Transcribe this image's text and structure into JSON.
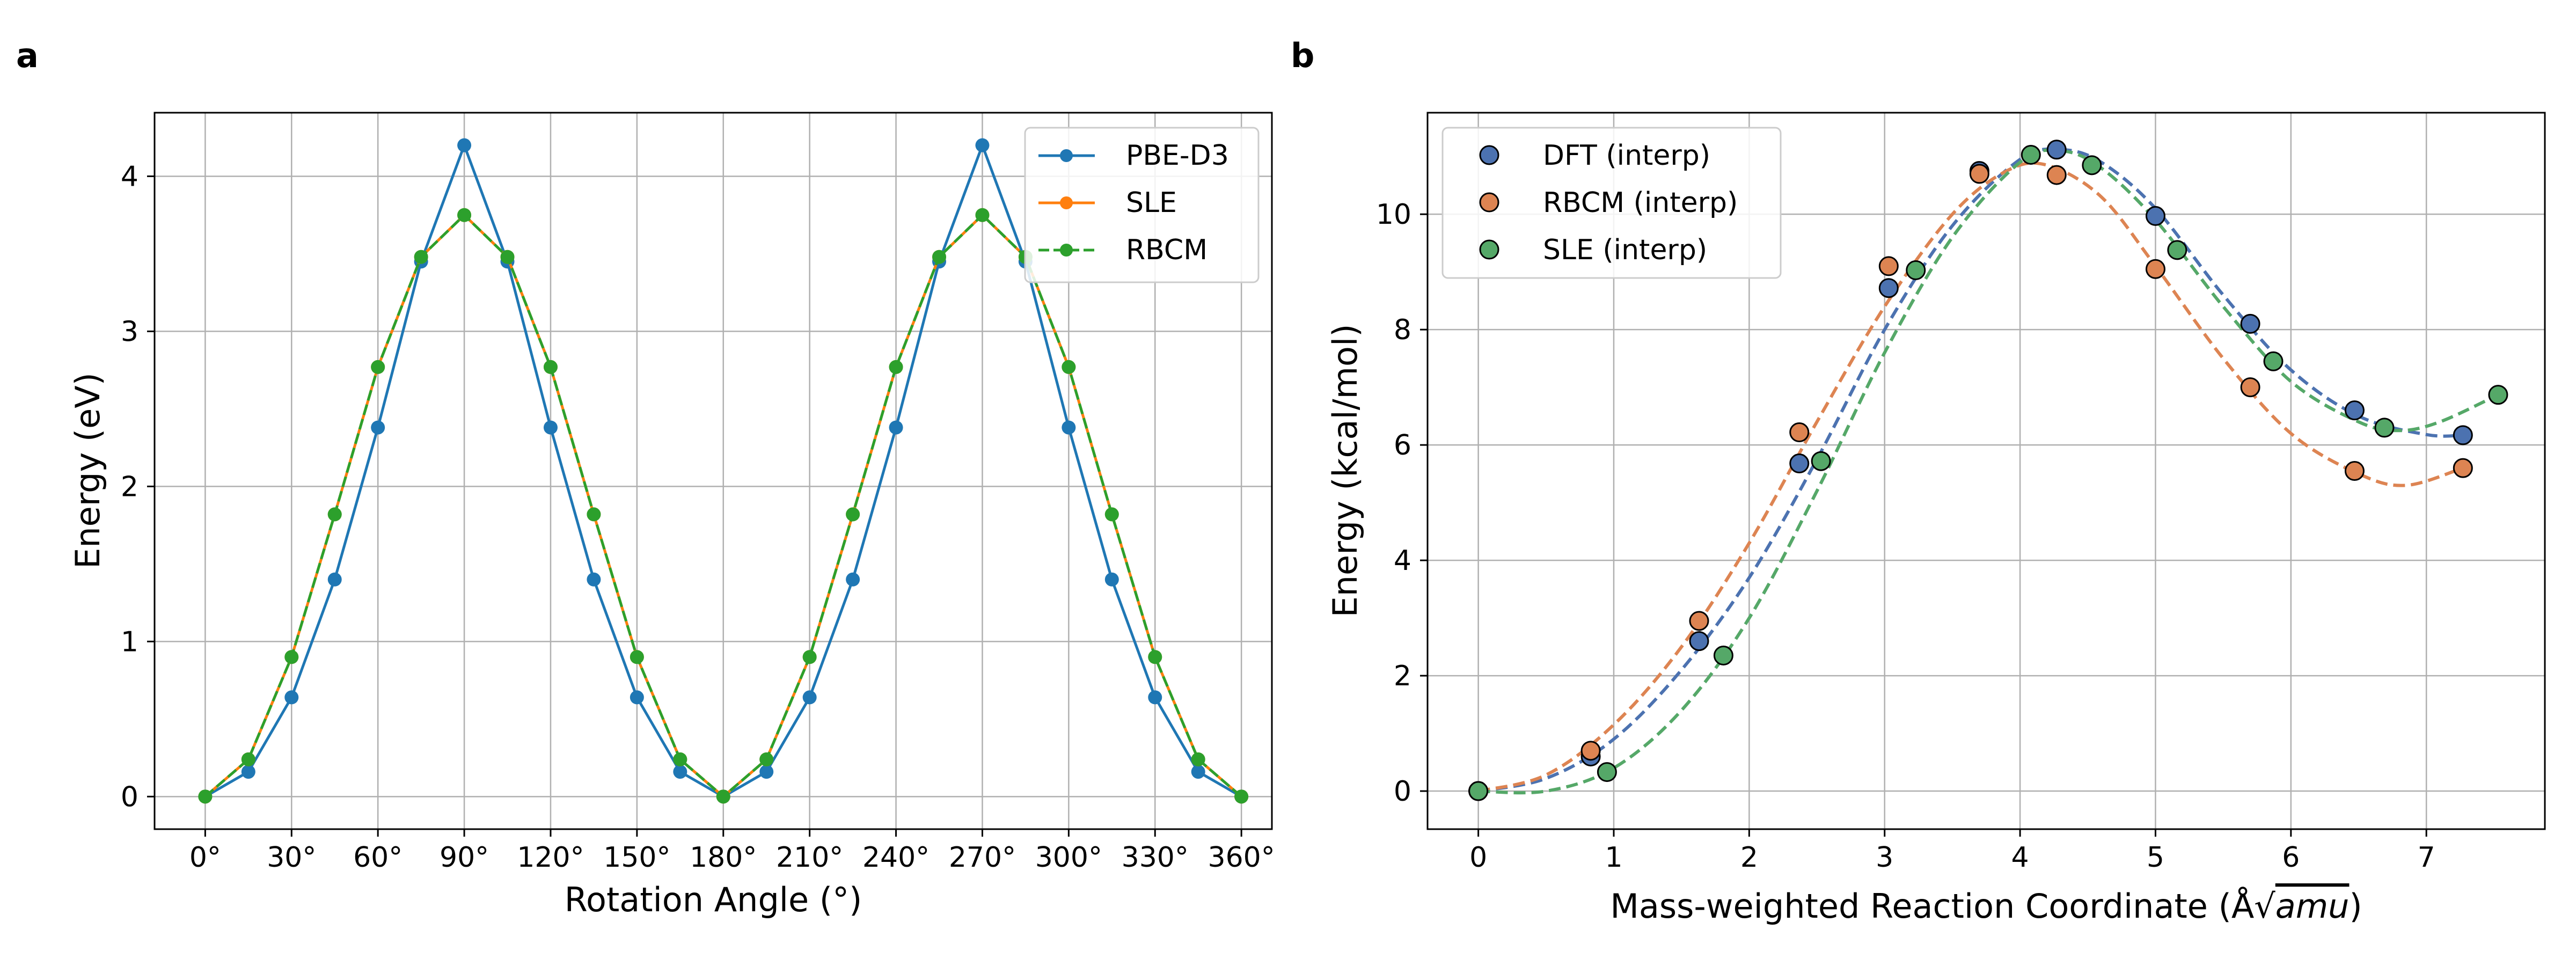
{
  "colors": {
    "blue": "#1f77b4",
    "orange": "#ff7f0e",
    "green": "#2ca02c",
    "dft": "#4c72b0",
    "rbcm": "#dd8452",
    "sle": "#55a868",
    "grid": "#b0b0b0"
  },
  "chart_data": [
    {
      "panel_label": "a",
      "type": "line",
      "title": "",
      "xlabel": "Rotation Angle (°)",
      "ylabel": "Energy (eV)",
      "xlim": [
        -17.6,
        370.6
      ],
      "ylim": [
        -0.21,
        4.41
      ],
      "grid": true,
      "legend_position": "top-right",
      "xticks": [
        0,
        30,
        60,
        90,
        120,
        150,
        180,
        210,
        240,
        270,
        300,
        330,
        360
      ],
      "xtick_labels": [
        "0°",
        "30°",
        "60°",
        "90°",
        "120°",
        "150°",
        "180°",
        "210°",
        "240°",
        "270°",
        "300°",
        "330°",
        "360°"
      ],
      "yticks": [
        0,
        1,
        2,
        3,
        4
      ],
      "ytick_labels": [
        "0",
        "1",
        "2",
        "3",
        "4"
      ],
      "x": [
        0,
        15,
        30,
        45,
        60,
        75,
        90,
        105,
        120,
        135,
        150,
        165,
        180,
        195,
        210,
        225,
        240,
        255,
        270,
        285,
        300,
        315,
        330,
        345,
        360
      ],
      "series": [
        {
          "name": "PBE-D3",
          "color_key": "blue",
          "line_style": "solid",
          "values": [
            0,
            0.16,
            0.64,
            1.4,
            2.38,
            3.45,
            4.2,
            3.45,
            2.38,
            1.4,
            0.64,
            0.16,
            0,
            0.16,
            0.64,
            1.4,
            2.38,
            3.45,
            4.2,
            3.45,
            2.38,
            1.4,
            0.64,
            0.16,
            0
          ]
        },
        {
          "name": "SLE",
          "color_key": "orange",
          "line_style": "solid",
          "values": [
            0,
            0.24,
            0.9,
            1.82,
            2.77,
            3.48,
            3.75,
            3.48,
            2.77,
            1.82,
            0.9,
            0.24,
            0,
            0.24,
            0.9,
            1.82,
            2.77,
            3.48,
            3.75,
            3.48,
            2.77,
            1.82,
            0.9,
            0.24,
            0
          ]
        },
        {
          "name": "RBCM",
          "color_key": "green",
          "line_style": "dashed",
          "values": [
            0,
            0.24,
            0.9,
            1.82,
            2.77,
            3.48,
            3.75,
            3.48,
            2.77,
            1.82,
            0.9,
            0.24,
            0,
            0.24,
            0.9,
            1.82,
            2.77,
            3.48,
            3.75,
            3.48,
            2.77,
            1.82,
            0.9,
            0.24,
            0
          ]
        }
      ]
    },
    {
      "panel_label": "b",
      "type": "scatter",
      "title": "",
      "xlabel_main": "Mass-weighted Reaction Coordinate (Å√",
      "xlabel_italic": "amu",
      "xlabel_close": ")",
      "ylabel": "Energy (kcal/mol)",
      "xlim": [
        -0.375,
        7.875
      ],
      "ylim": [
        -0.66,
        11.76
      ],
      "grid": true,
      "legend_position": "top-left",
      "xticks": [
        0,
        1,
        2,
        3,
        4,
        5,
        6,
        7
      ],
      "xtick_labels": [
        "0",
        "1",
        "2",
        "3",
        "4",
        "5",
        "6",
        "7"
      ],
      "yticks": [
        0,
        2,
        4,
        6,
        8,
        10
      ],
      "ytick_labels": [
        "0",
        "2",
        "4",
        "6",
        "8",
        "10"
      ],
      "series": [
        {
          "name": "DFT (interp)",
          "color_key": "dft",
          "points": [
            [
              0,
              0
            ],
            [
              0.83,
              0.6
            ],
            [
              1.63,
              2.6
            ],
            [
              2.37,
              5.68
            ],
            [
              3.03,
              8.72
            ],
            [
              3.7,
              10.75
            ],
            [
              4.27,
              11.12
            ],
            [
              5.0,
              9.97
            ],
            [
              5.7,
              8.1
            ],
            [
              6.47,
              6.6
            ],
            [
              7.27,
              6.17
            ]
          ],
          "curve": [
            [
              0,
              0
            ],
            [
              0.5,
              0.22
            ],
            [
              1,
              0.9
            ],
            [
              1.5,
              2.1
            ],
            [
              2,
              3.7
            ],
            [
              2.5,
              5.75
            ],
            [
              3,
              8.0
            ],
            [
              3.5,
              9.8
            ],
            [
              4,
              10.95
            ],
            [
              4.3,
              11.12
            ],
            [
              4.6,
              10.9
            ],
            [
              5,
              10.1
            ],
            [
              5.5,
              8.6
            ],
            [
              6,
              7.3
            ],
            [
              6.5,
              6.5
            ],
            [
              7,
              6.18
            ],
            [
              7.27,
              6.17
            ]
          ]
        },
        {
          "name": "RBCM (interp)",
          "color_key": "rbcm",
          "points": [
            [
              0,
              0
            ],
            [
              0.83,
              0.7
            ],
            [
              1.63,
              2.95
            ],
            [
              2.37,
              6.22
            ],
            [
              3.03,
              9.1
            ],
            [
              3.7,
              10.7
            ],
            [
              4.27,
              10.68
            ],
            [
              5.0,
              9.05
            ],
            [
              5.7,
              7.0
            ],
            [
              6.47,
              5.55
            ],
            [
              7.27,
              5.6
            ]
          ],
          "curve": [
            [
              0,
              0
            ],
            [
              0.5,
              0.28
            ],
            [
              1,
              1.15
            ],
            [
              1.5,
              2.5
            ],
            [
              2,
              4.3
            ],
            [
              2.5,
              6.4
            ],
            [
              3,
              8.4
            ],
            [
              3.5,
              10.0
            ],
            [
              3.9,
              10.75
            ],
            [
              4.2,
              10.85
            ],
            [
              4.6,
              10.3
            ],
            [
              5,
              9.1
            ],
            [
              5.5,
              7.5
            ],
            [
              6,
              6.2
            ],
            [
              6.5,
              5.5
            ],
            [
              6.85,
              5.3
            ],
            [
              7.27,
              5.6
            ]
          ]
        },
        {
          "name": "SLE (interp)",
          "color_key": "sle",
          "points": [
            [
              0,
              0
            ],
            [
              0.95,
              0.33
            ],
            [
              1.81,
              2.35
            ],
            [
              2.53,
              5.72
            ],
            [
              3.23,
              9.03
            ],
            [
              4.08,
              11.03
            ],
            [
              4.53,
              10.85
            ],
            [
              5.16,
              9.38
            ],
            [
              5.87,
              7.45
            ],
            [
              6.69,
              6.3
            ],
            [
              7.53,
              6.87
            ]
          ],
          "curve": [
            [
              0,
              0
            ],
            [
              0.5,
              0
            ],
            [
              1,
              0.4
            ],
            [
              1.5,
              1.4
            ],
            [
              2,
              3.0
            ],
            [
              2.5,
              5.2
            ],
            [
              3,
              7.6
            ],
            [
              3.5,
              9.6
            ],
            [
              4,
              10.9
            ],
            [
              4.3,
              11.1
            ],
            [
              4.6,
              10.8
            ],
            [
              5,
              9.9
            ],
            [
              5.5,
              8.4
            ],
            [
              6,
              7.1
            ],
            [
              6.5,
              6.4
            ],
            [
              6.8,
              6.25
            ],
            [
              7.1,
              6.4
            ],
            [
              7.53,
              6.87
            ]
          ]
        }
      ]
    }
  ]
}
